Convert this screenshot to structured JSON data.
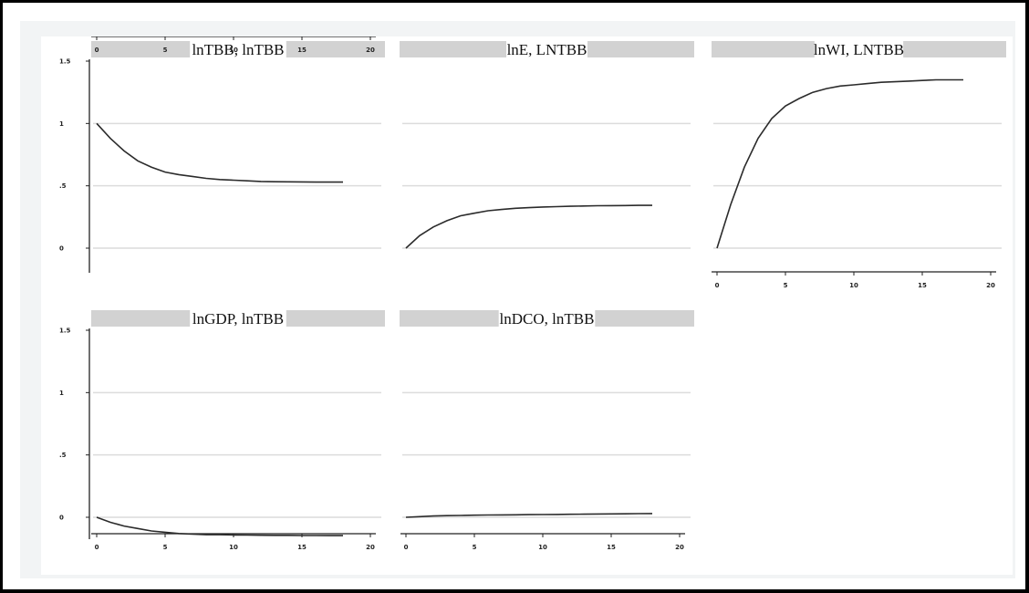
{
  "figure": {
    "colors": {
      "outer_background": "#f2f4f5",
      "plot_background": "#ffffff",
      "title_band": "#d2d2d2",
      "gridline": "#dcdcdc",
      "line": "#2b2b2b",
      "axis": "#222222"
    }
  },
  "chart_data": [
    {
      "type": "line",
      "title": "lnTBB, lnTBB",
      "x": [
        0,
        1,
        2,
        3,
        4,
        5,
        6,
        7,
        8,
        9,
        10,
        11,
        12,
        13,
        14,
        15,
        16,
        17,
        18
      ],
      "series": [
        {
          "values": [
            1.0,
            0.88,
            0.78,
            0.7,
            0.65,
            0.61,
            0.59,
            0.575,
            0.56,
            0.55,
            0.545,
            0.54,
            0.535,
            0.533,
            0.532,
            0.531,
            0.53,
            0.53,
            0.53
          ]
        }
      ],
      "xticks": [
        "0",
        "5",
        "10",
        "15",
        "20"
      ],
      "yticks": [
        "0",
        ".5",
        "1",
        "1.5"
      ],
      "xlim": [
        0,
        20
      ],
      "ylim": [
        -0.2,
        1.5
      ],
      "grid": true
    },
    {
      "type": "line",
      "title": "lnE, LNTBB",
      "x": [
        0,
        1,
        2,
        3,
        4,
        5,
        6,
        7,
        8,
        9,
        10,
        11,
        12,
        13,
        14,
        15,
        16,
        17,
        18
      ],
      "series": [
        {
          "values": [
            0.0,
            0.1,
            0.17,
            0.22,
            0.26,
            0.28,
            0.3,
            0.31,
            0.32,
            0.325,
            0.33,
            0.333,
            0.336,
            0.338,
            0.34,
            0.341,
            0.342,
            0.343,
            0.343
          ]
        }
      ],
      "xlim": [
        0,
        20
      ],
      "ylim": [
        -0.2,
        1.5
      ],
      "grid": true
    },
    {
      "type": "line",
      "title": "lnWI, LNTBB",
      "x": [
        0,
        1,
        2,
        3,
        4,
        5,
        6,
        7,
        8,
        9,
        10,
        11,
        12,
        13,
        14,
        15,
        16,
        17,
        18
      ],
      "series": [
        {
          "values": [
            0.0,
            0.35,
            0.65,
            0.88,
            1.04,
            1.14,
            1.2,
            1.25,
            1.28,
            1.3,
            1.31,
            1.32,
            1.33,
            1.335,
            1.34,
            1.345,
            1.35,
            1.35,
            1.35
          ]
        }
      ],
      "xticks": [
        "0",
        "5",
        "10",
        "15",
        "20"
      ],
      "xlim": [
        0,
        20
      ],
      "ylim": [
        -0.2,
        1.5
      ],
      "grid": true
    },
    {
      "type": "line",
      "title": "lnGDP, lnTBB",
      "x": [
        0,
        1,
        2,
        3,
        4,
        5,
        6,
        7,
        8,
        9,
        10,
        11,
        12,
        13,
        14,
        15,
        16,
        17,
        18
      ],
      "series": [
        {
          "values": [
            0.0,
            -0.04,
            -0.07,
            -0.09,
            -0.11,
            -0.12,
            -0.13,
            -0.135,
            -0.14,
            -0.14,
            -0.142,
            -0.143,
            -0.144,
            -0.145,
            -0.145,
            -0.146,
            -0.146,
            -0.147,
            -0.147
          ]
        }
      ],
      "xticks": [
        "0",
        "5",
        "10",
        "15",
        "20"
      ],
      "yticks": [
        "0",
        ".5",
        "1",
        "1.5"
      ],
      "xlim": [
        0,
        20
      ],
      "ylim": [
        -0.2,
        1.5
      ],
      "grid": true
    },
    {
      "type": "line",
      "title": "lnDCO, lnTBB",
      "x": [
        0,
        1,
        2,
        3,
        4,
        5,
        6,
        7,
        8,
        9,
        10,
        11,
        12,
        13,
        14,
        15,
        16,
        17,
        18
      ],
      "series": [
        {
          "values": [
            0.0,
            0.005,
            0.01,
            0.013,
            0.015,
            0.017,
            0.018,
            0.019,
            0.02,
            0.021,
            0.022,
            0.023,
            0.024,
            0.025,
            0.026,
            0.027,
            0.028,
            0.029,
            0.03
          ]
        }
      ],
      "xticks": [
        "0",
        "5",
        "10",
        "15",
        "20"
      ],
      "xlim": [
        0,
        20
      ],
      "ylim": [
        -0.2,
        1.5
      ],
      "grid": true
    }
  ]
}
